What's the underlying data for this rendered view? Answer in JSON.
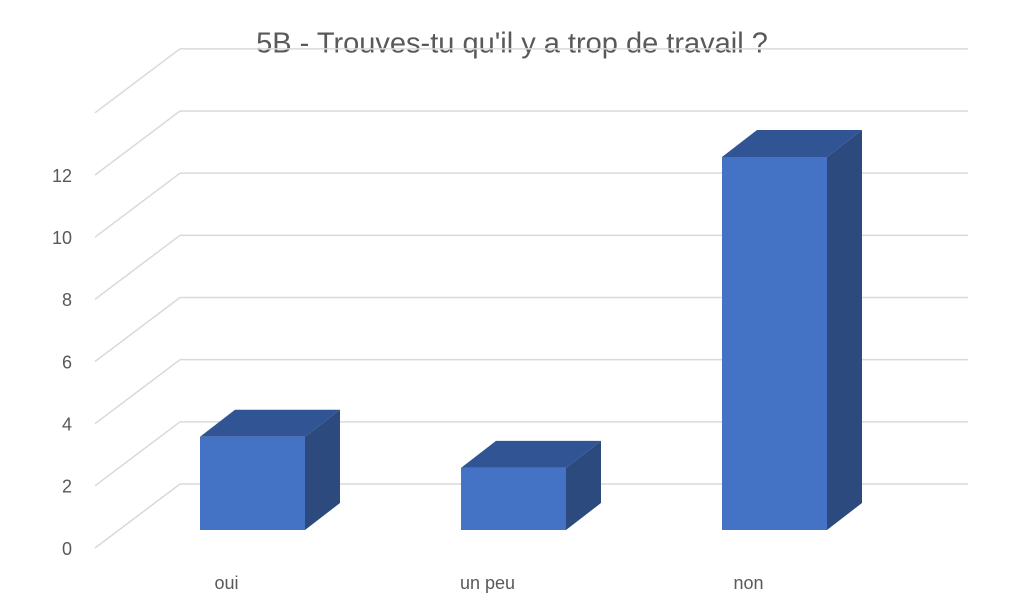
{
  "chart_data": {
    "type": "bar3d",
    "title": "5B - Trouves-tu qu'il y a trop de travail ?",
    "categories": [
      "oui",
      "un peu",
      "non"
    ],
    "values": [
      3,
      2,
      12
    ],
    "color": "#4472c4",
    "ylim": [
      0,
      14
    ],
    "yticks": [
      0,
      2,
      4,
      6,
      8,
      10,
      12
    ],
    "grid": true
  }
}
